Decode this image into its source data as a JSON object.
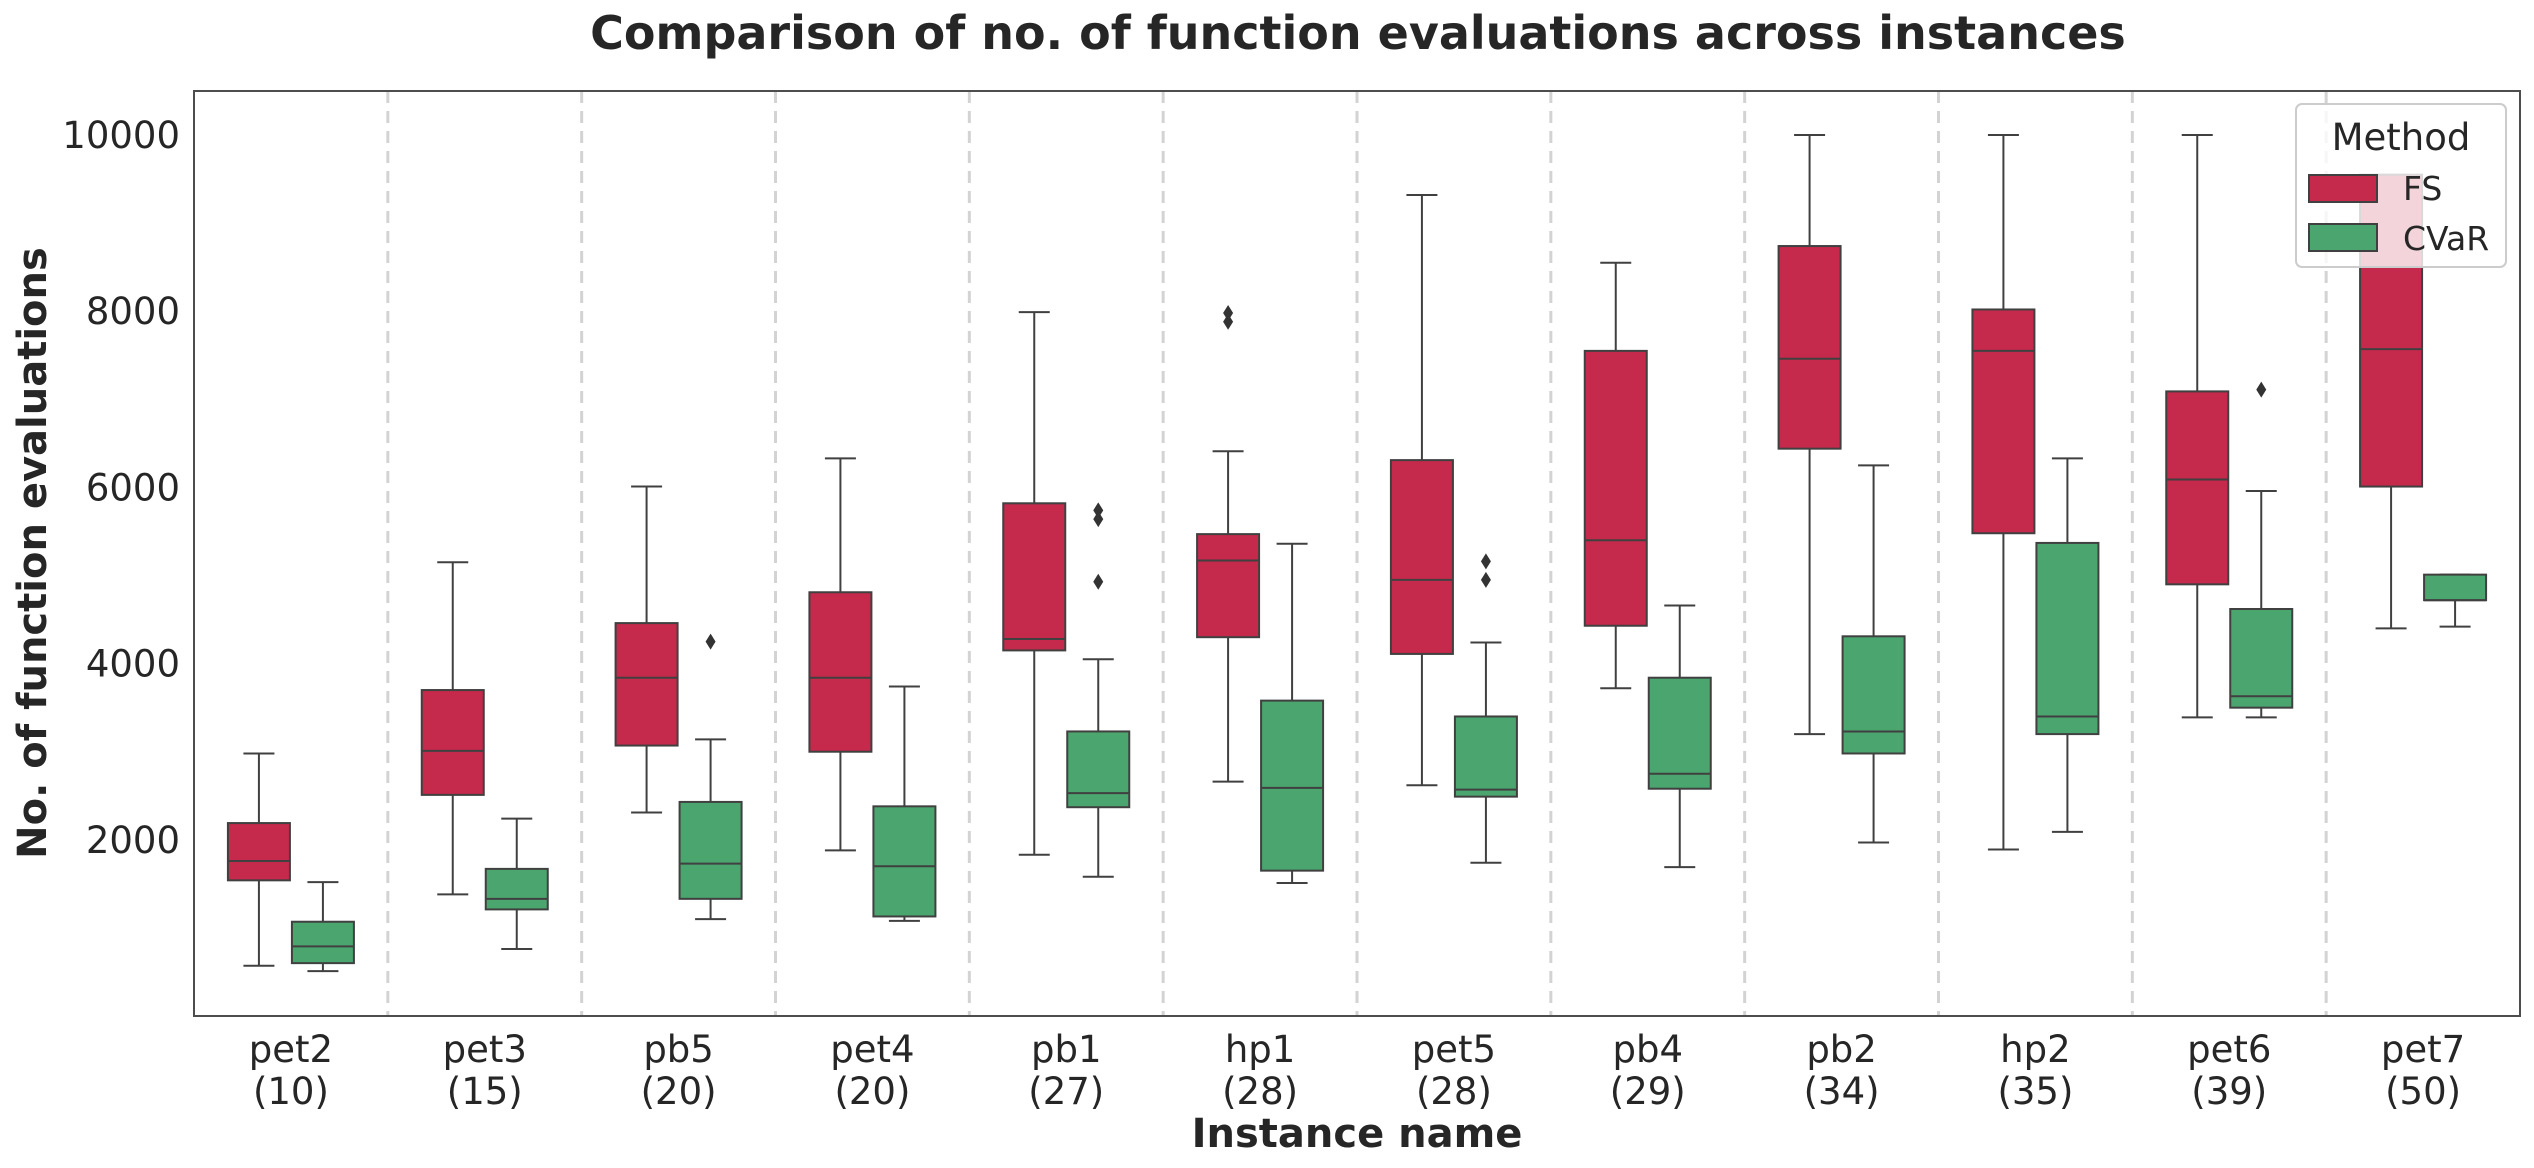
{
  "chart_data": {
    "type": "box",
    "title": "Comparison of no. of function evaluations across instances",
    "xlabel": "Instance name",
    "ylabel": "No. of function evaluations",
    "ylim": [
      0,
      10500
    ],
    "yticks": [
      "2000",
      "4000",
      "6000",
      "8000",
      "10000"
    ],
    "grid": "vertical dashed separators between instances",
    "categories": [
      {
        "name": "pet2",
        "size": "(10)"
      },
      {
        "name": "pet3",
        "size": "(15)"
      },
      {
        "name": "pb5",
        "size": "(20)"
      },
      {
        "name": "pet4",
        "size": "(20)"
      },
      {
        "name": "pb1",
        "size": "(27)"
      },
      {
        "name": "hp1",
        "size": "(28)"
      },
      {
        "name": "pet5",
        "size": "(28)"
      },
      {
        "name": "pb4",
        "size": "(29)"
      },
      {
        "name": "pb2",
        "size": "(34)"
      },
      {
        "name": "hp2",
        "size": "(35)"
      },
      {
        "name": "pet6",
        "size": "(39)"
      },
      {
        "name": "pet7",
        "size": "(50)"
      }
    ],
    "legend": {
      "title": "Method",
      "position": "top-right"
    },
    "series": [
      {
        "name": "FS",
        "color": "#c5294b",
        "boxes": [
          {
            "whislo": 570,
            "q1": 1540,
            "med": 1760,
            "q3": 2190,
            "whishi": 2980,
            "fliers": []
          },
          {
            "whislo": 1380,
            "q1": 2510,
            "med": 3010,
            "q3": 3700,
            "whishi": 5150,
            "fliers": []
          },
          {
            "whislo": 2310,
            "q1": 3070,
            "med": 3840,
            "q3": 4460,
            "whishi": 6010,
            "fliers": []
          },
          {
            "whislo": 1880,
            "q1": 3000,
            "med": 3840,
            "q3": 4810,
            "whishi": 6330,
            "fliers": []
          },
          {
            "whislo": 1830,
            "q1": 4150,
            "med": 4280,
            "q3": 5820,
            "whishi": 7990,
            "fliers": []
          },
          {
            "whislo": 2660,
            "q1": 4300,
            "med": 5170,
            "q3": 5470,
            "whishi": 6410,
            "fliers": [
              7880,
              7980
            ]
          },
          {
            "whislo": 2620,
            "q1": 4110,
            "med": 4950,
            "q3": 6310,
            "whishi": 9320,
            "fliers": []
          },
          {
            "whislo": 3720,
            "q1": 4430,
            "med": 5400,
            "q3": 7550,
            "whishi": 8550,
            "fliers": []
          },
          {
            "whislo": 3200,
            "q1": 6440,
            "med": 7460,
            "q3": 8740,
            "whishi": 10000,
            "fliers": []
          },
          {
            "whislo": 1890,
            "q1": 5480,
            "med": 7550,
            "q3": 8020,
            "whishi": 10000,
            "fliers": []
          },
          {
            "whislo": 3390,
            "q1": 4900,
            "med": 6090,
            "q3": 7090,
            "whishi": 10000,
            "fliers": []
          },
          {
            "whislo": 4400,
            "q1": 6010,
            "med": 7570,
            "q3": 9550,
            "whishi": 9550,
            "fliers": []
          }
        ]
      },
      {
        "name": "CVaR",
        "color": "#4aa56f",
        "boxes": [
          {
            "whislo": 510,
            "q1": 600,
            "med": 790,
            "q3": 1070,
            "whishi": 1520,
            "fliers": []
          },
          {
            "whislo": 760,
            "q1": 1210,
            "med": 1330,
            "q3": 1670,
            "whishi": 2240,
            "fliers": []
          },
          {
            "whislo": 1100,
            "q1": 1330,
            "med": 1730,
            "q3": 2430,
            "whishi": 3140,
            "fliers": [
              4250
            ]
          },
          {
            "whislo": 1080,
            "q1": 1130,
            "med": 1700,
            "q3": 2380,
            "whishi": 3740,
            "fliers": []
          },
          {
            "whislo": 1580,
            "q1": 2370,
            "med": 2530,
            "q3": 3230,
            "whishi": 4050,
            "fliers": [
              4930,
              5640,
              5740
            ]
          },
          {
            "whislo": 1510,
            "q1": 1650,
            "med": 2590,
            "q3": 3580,
            "whishi": 5360,
            "fliers": []
          },
          {
            "whislo": 1740,
            "q1": 2490,
            "med": 2570,
            "q3": 3400,
            "whishi": 4240,
            "fliers": [
              4950,
              5160
            ]
          },
          {
            "whislo": 1690,
            "q1": 2580,
            "med": 2750,
            "q3": 3840,
            "whishi": 4660,
            "fliers": []
          },
          {
            "whislo": 1970,
            "q1": 2980,
            "med": 3230,
            "q3": 4310,
            "whishi": 6250,
            "fliers": []
          },
          {
            "whislo": 2090,
            "q1": 3200,
            "med": 3400,
            "q3": 5370,
            "whishi": 6330,
            "fliers": []
          },
          {
            "whislo": 3390,
            "q1": 3500,
            "med": 3630,
            "q3": 4620,
            "whishi": 5960,
            "fliers": [
              7110
            ]
          },
          {
            "whislo": 4420,
            "q1": 4720,
            "med": 4720,
            "q3": 5010,
            "whishi": 5010,
            "fliers": []
          }
        ]
      }
    ]
  }
}
